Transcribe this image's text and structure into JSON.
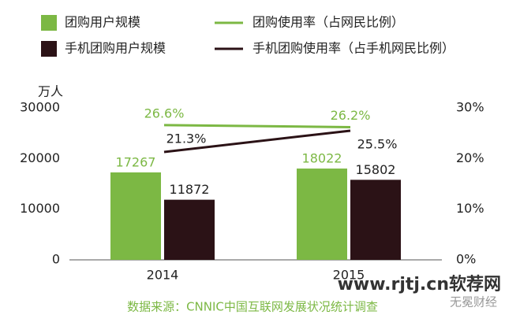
{
  "chart_data": {
    "type": "bar-line",
    "y_label": "万人",
    "categories": [
      "2014",
      "2015"
    ],
    "series": [
      {
        "name": "团购用户规模",
        "type": "bar",
        "color": "#7cb844",
        "values": [
          17267,
          18022
        ]
      },
      {
        "name": "手机团购用户规模",
        "type": "bar",
        "color": "#2b1216",
        "values": [
          11872,
          15802
        ]
      },
      {
        "name": "团购使用率（占网民比例）",
        "type": "line",
        "axis": "y2",
        "color": "#7cb844",
        "values": [
          26.6,
          26.2
        ],
        "value_labels": [
          "26.6%",
          "26.2%"
        ]
      },
      {
        "name": "手机团购使用率（占手机网民比例）",
        "type": "line",
        "axis": "y2",
        "color": "#2b1216",
        "values": [
          21.3,
          25.5
        ],
        "value_labels": [
          "21.3%",
          "25.5%"
        ]
      }
    ],
    "ylim": [
      0,
      30000
    ],
    "yticks": [
      0,
      10000,
      20000,
      30000
    ],
    "y2lim": [
      0,
      30
    ],
    "y2ticks": [
      {
        "value": 0,
        "label": "0%"
      },
      {
        "value": 10,
        "label": "10%"
      },
      {
        "value": 20,
        "label": "20%"
      },
      {
        "value": 30,
        "label": "30%"
      }
    ],
    "source": "数据来源：CNNIC中国互联网发展状况统计调查",
    "watermarks": [
      "www.rjtj.cn软荐网",
      "无冕财经"
    ]
  }
}
